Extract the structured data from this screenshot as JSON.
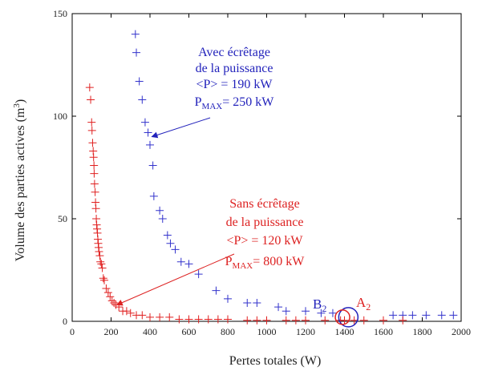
{
  "chart_data": {
    "type": "scatter",
    "xlabel": "Pertes totales (W)",
    "ylabel_main": "Volume des parties actives (m",
    "ylabel_sup": "3",
    "ylabel_end": ")",
    "xlim": [
      0,
      2000
    ],
    "ylim": [
      0,
      150
    ],
    "xticks": [
      0,
      200,
      400,
      600,
      800,
      1000,
      1200,
      1400,
      1600,
      1800,
      2000
    ],
    "yticks": [
      0,
      50,
      100,
      150
    ],
    "grid": false,
    "marker": "+",
    "series": [
      {
        "color": "#3333cc",
        "points": [
          [
            325,
            140
          ],
          [
            330,
            131
          ],
          [
            345,
            117
          ],
          [
            360,
            108
          ],
          [
            375,
            97
          ],
          [
            390,
            92
          ],
          [
            400,
            86
          ],
          [
            415,
            76
          ],
          [
            420,
            61
          ],
          [
            450,
            54
          ],
          [
            465,
            50
          ],
          [
            490,
            42
          ],
          [
            505,
            38
          ],
          [
            530,
            35
          ],
          [
            560,
            29
          ],
          [
            600,
            28
          ],
          [
            650,
            23
          ],
          [
            740,
            15
          ],
          [
            800,
            11
          ],
          [
            900,
            9
          ],
          [
            950,
            9
          ],
          [
            1060,
            7
          ],
          [
            1100,
            5
          ],
          [
            1200,
            5
          ],
          [
            1280,
            4
          ],
          [
            1340,
            4
          ],
          [
            1650,
            3
          ],
          [
            1700,
            3
          ],
          [
            1750,
            3
          ],
          [
            1820,
            3
          ],
          [
            1900,
            3
          ],
          [
            1960,
            3
          ]
        ]
      },
      {
        "color": "#e02020",
        "points": [
          [
            90,
            114
          ],
          [
            95,
            108
          ],
          [
            100,
            97
          ],
          [
            102,
            93
          ],
          [
            105,
            87
          ],
          [
            108,
            83
          ],
          [
            110,
            80
          ],
          [
            112,
            76
          ],
          [
            113,
            72
          ],
          [
            115,
            67
          ],
          [
            118,
            63
          ],
          [
            120,
            58
          ],
          [
            122,
            55
          ],
          [
            124,
            50
          ],
          [
            126,
            47
          ],
          [
            128,
            45
          ],
          [
            130,
            43
          ],
          [
            132,
            40
          ],
          [
            134,
            38
          ],
          [
            136,
            36
          ],
          [
            138,
            34
          ],
          [
            142,
            32
          ],
          [
            145,
            29
          ],
          [
            150,
            28
          ],
          [
            155,
            26
          ],
          [
            160,
            21
          ],
          [
            165,
            20
          ],
          [
            175,
            16
          ],
          [
            185,
            14
          ],
          [
            195,
            12
          ],
          [
            205,
            10
          ],
          [
            215,
            9
          ],
          [
            225,
            8
          ],
          [
            240,
            7
          ],
          [
            260,
            5
          ],
          [
            280,
            5
          ],
          [
            300,
            4
          ],
          [
            330,
            3
          ],
          [
            360,
            3
          ],
          [
            400,
            2
          ],
          [
            450,
            2
          ],
          [
            500,
            2
          ],
          [
            550,
            1
          ],
          [
            600,
            1
          ],
          [
            650,
            1
          ],
          [
            700,
            1
          ],
          [
            750,
            1
          ],
          [
            800,
            1
          ],
          [
            900,
            0.5
          ],
          [
            950,
            0.5
          ],
          [
            1000,
            0.5
          ],
          [
            1100,
            0.5
          ],
          [
            1150,
            0.5
          ],
          [
            1200,
            0.5
          ],
          [
            1300,
            0.5
          ],
          [
            1380,
            0.5
          ],
          [
            1400,
            0.5
          ],
          [
            1450,
            0.5
          ],
          [
            1500,
            0.5
          ],
          [
            1600,
            0.5
          ],
          [
            1700,
            0.5
          ]
        ]
      }
    ],
    "annotations": {
      "blue": {
        "color": "#2222bb",
        "line1": "Avec écrêtage",
        "line2": "de la puissance",
        "line3": "<P> = 190 kW",
        "line4_p": "P",
        "line4_sub": "MAX",
        "line4_rest": "= 250 kW",
        "arrow_to": [
          410,
          90
        ]
      },
      "red": {
        "color": "#dd2222",
        "line1": "Sans écrêtage",
        "line2": "de la puissance",
        "line3": "<P> = 120 kW",
        "line4_p": "P",
        "line4_sub": "MAX",
        "line4_rest": "= 800 kW",
        "arrow_to": [
          230,
          8
        ]
      },
      "B2": {
        "label": "B",
        "sub": "2",
        "color": "#2222bb",
        "circle_at": [
          1420,
          2
        ]
      },
      "A2": {
        "label": "A",
        "sub": "2",
        "color": "#dd2222",
        "circle_at": [
          1390,
          2
        ]
      }
    }
  }
}
